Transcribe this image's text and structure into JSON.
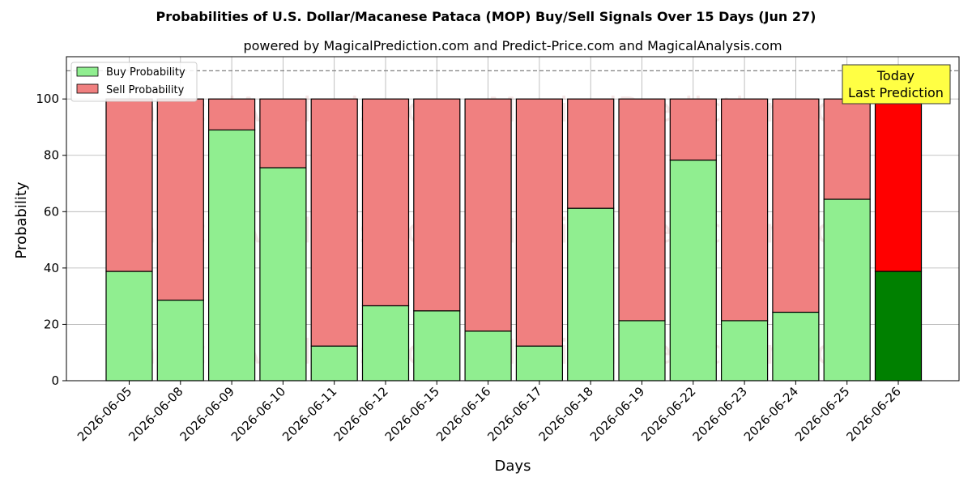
{
  "chart_data": {
    "type": "bar",
    "stacked": true,
    "title": "Probabilities of U.S. Dollar/Macanese Pataca (MOP) Buy/Sell Signals Over 15 Days (Jun 27)",
    "subtitle": "powered by MagicalPrediction.com and Predict-Price.com and MagicalAnalysis.com",
    "xlabel": "Days",
    "ylabel": "Probability",
    "ylim": [
      0,
      115
    ],
    "yticks": [
      0,
      20,
      40,
      60,
      80,
      100
    ],
    "reference_line": 110,
    "grid": true,
    "legend_position": "top-left",
    "categories": [
      "2026-06-05",
      "2026-06-08",
      "2026-06-09",
      "2026-06-10",
      "2026-06-11",
      "2026-06-12",
      "2026-06-15",
      "2026-06-16",
      "2026-06-17",
      "2026-06-18",
      "2026-06-19",
      "2026-06-22",
      "2026-06-23",
      "2026-06-24",
      "2026-06-25",
      "2026-06-26"
    ],
    "series": [
      {
        "name": "Buy Probability",
        "color": "#90ee90",
        "highlight_color": "#008000",
        "values": [
          38.8,
          28.6,
          89.0,
          75.6,
          12.3,
          26.6,
          24.8,
          17.6,
          12.3,
          61.2,
          21.3,
          78.3,
          21.3,
          24.3,
          64.4,
          38.8
        ]
      },
      {
        "name": "Sell Probability",
        "color": "#f08080",
        "highlight_color": "#ff0000",
        "values": [
          61.2,
          71.4,
          11.0,
          24.4,
          87.7,
          73.4,
          75.2,
          82.4,
          87.7,
          38.8,
          78.7,
          21.7,
          78.7,
          75.7,
          35.6,
          61.2
        ]
      }
    ],
    "annotation": {
      "lines": [
        "Today",
        "Last Prediction"
      ],
      "background": "#ffff44"
    },
    "watermarks": [
      "MagicalAnalysis.com",
      "MagicalPrediction.com"
    ]
  }
}
